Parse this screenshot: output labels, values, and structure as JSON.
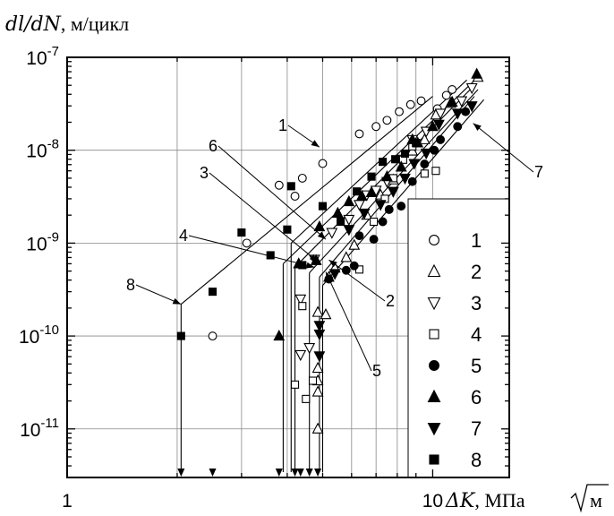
{
  "chart_data": {
    "type": "scatter",
    "x_scale": "log",
    "y_scale": "log",
    "xlim": [
      1,
      16.2
    ],
    "ylim": [
      3e-12,
      1e-07
    ],
    "grid": true,
    "legend_placement": "right",
    "ylabel": {
      "var": "dl/dN",
      "unit": ", м/цикл"
    },
    "xlabel": {
      "var": "ΔK",
      "unit": ", МПа ",
      "root": "м"
    },
    "x_ticks": [
      {
        "value": 1,
        "label": "1"
      },
      {
        "value": 10,
        "label": "10"
      }
    ],
    "y_ticks": [
      {
        "value": 1e-07,
        "mantissa": "10",
        "exponent": "-7"
      },
      {
        "value": 1e-08,
        "mantissa": "10",
        "exponent": "-8"
      },
      {
        "value": 1e-09,
        "mantissa": "10",
        "exponent": "-9"
      },
      {
        "value": 1e-10,
        "mantissa": "10",
        "exponent": "-10"
      },
      {
        "value": 1e-11,
        "mantissa": "10",
        "exponent": "-11"
      }
    ],
    "series": [
      {
        "name": "1",
        "marker": "circle-open",
        "points": [
          [
            2.5,
            1e-10
          ],
          [
            3.1,
            1e-09
          ],
          [
            3.8,
            4.2e-09
          ],
          [
            4.2,
            3.2e-09
          ],
          [
            4.4,
            5e-09
          ],
          [
            5.0,
            7.2e-09
          ],
          [
            6.3,
            1.5e-08
          ],
          [
            7.0,
            1.8e-08
          ],
          [
            7.5,
            2.1e-08
          ],
          [
            8.1,
            2.6e-08
          ],
          [
            8.7,
            3.1e-08
          ],
          [
            9.3,
            3.4e-08
          ],
          [
            10.3,
            2.8e-08
          ],
          [
            10.9,
            3.9e-08
          ],
          [
            11.3,
            4.5e-08
          ]
        ],
        "line": [
          [
            4.1,
            1e-09
          ],
          [
            12.4,
            5.7e-08
          ]
        ]
      },
      {
        "name": "2",
        "marker": "triangle-up-open",
        "points": [
          [
            4.85,
            1e-11
          ],
          [
            4.85,
            2.5e-11
          ],
          [
            4.85,
            3.3e-11
          ],
          [
            4.85,
            4.5e-11
          ],
          [
            4.85,
            1.8e-10
          ],
          [
            5.1,
            1.7e-10
          ],
          [
            5.2,
            4.3e-10
          ],
          [
            5.4,
            5.4e-10
          ],
          [
            5.8,
            7e-10
          ],
          [
            6.1,
            9.5e-10
          ],
          [
            6.6,
            2e-09
          ],
          [
            7.2,
            3.3e-09
          ],
          [
            7.8,
            4.8e-09
          ],
          [
            8.8,
            9.8e-09
          ],
          [
            9.5,
            1.3e-08
          ],
          [
            10.2,
            2.4e-08
          ],
          [
            11.2,
            3.2e-08
          ],
          [
            13.3,
            6.1e-08
          ]
        ],
        "line": [
          [
            4.9,
            4.3e-10
          ],
          [
            13.0,
            3.8e-08
          ]
        ]
      },
      {
        "name": "3",
        "marker": "triangle-down-open",
        "points": [
          [
            4.35,
            6.3e-11
          ],
          [
            4.35,
            2.5e-10
          ],
          [
            4.6,
            7.5e-11
          ],
          [
            4.75,
            6.7e-10
          ],
          [
            5.3,
            1.3e-09
          ],
          [
            5.9,
            1.8e-09
          ],
          [
            6.3,
            2.6e-09
          ],
          [
            6.6,
            3.3e-09
          ],
          [
            7.0,
            3.7e-09
          ],
          [
            7.5,
            4.6e-09
          ],
          [
            8.2,
            8e-09
          ],
          [
            8.8,
            1.3e-08
          ],
          [
            9.6,
            1.6e-08
          ],
          [
            10.5,
            2.5e-08
          ],
          [
            12.0,
            3.4e-08
          ],
          [
            12.8,
            4.7e-08
          ]
        ],
        "line": [
          [
            4.6,
            4.8e-10
          ],
          [
            13.3,
            4.5e-08
          ]
        ]
      },
      {
        "name": "4",
        "marker": "square-open",
        "points": [
          [
            4.2,
            3e-11
          ],
          [
            4.4,
            2.1e-10
          ],
          [
            4.5,
            2.1e-11
          ],
          [
            4.7,
            3.3e-11
          ],
          [
            6.3,
            5.2e-10
          ],
          [
            6.9,
            1.7e-09
          ],
          [
            7.4,
            3e-09
          ],
          [
            7.8,
            5e-09
          ],
          [
            8.3,
            7.9e-09
          ],
          [
            8.8,
            1.1e-08
          ],
          [
            9.5,
            5.6e-09
          ],
          [
            10.2,
            6e-09
          ]
        ],
        "line": [
          [
            4.2,
            5.5e-10
          ],
          [
            13.0,
            5e-08
          ]
        ]
      },
      {
        "name": "5",
        "marker": "circle-filled",
        "points": [
          [
            5.2,
            4.1e-10
          ],
          [
            5.8,
            5.1e-10
          ],
          [
            6.1,
            5.7e-10
          ],
          [
            6.3,
            1.2e-09
          ],
          [
            6.9,
            1.1e-09
          ],
          [
            7.3,
            1.7e-09
          ],
          [
            7.6,
            2.3e-09
          ],
          [
            8.2,
            2.5e-09
          ],
          [
            8.8,
            4.6e-09
          ],
          [
            9.5,
            7.1e-09
          ],
          [
            10.1,
            1e-08
          ],
          [
            10.5,
            1.3e-08
          ],
          [
            11.7,
            1.8e-08
          ],
          [
            12.3,
            2.6e-08
          ]
        ]
      },
      {
        "name": "6",
        "marker": "triangle-up-filled",
        "points": [
          [
            3.8,
            1e-10
          ],
          [
            4.3,
            6e-10
          ],
          [
            4.8,
            6.5e-10
          ],
          [
            4.9,
            1.5e-09
          ],
          [
            5.5,
            2.1e-09
          ],
          [
            5.9,
            2.8e-09
          ],
          [
            6.4,
            3.2e-09
          ],
          [
            6.8,
            3.5e-09
          ],
          [
            7.5,
            5.2e-09
          ],
          [
            8.2,
            6.6e-09
          ],
          [
            8.8,
            1.3e-08
          ],
          [
            9.1,
            1.2e-08
          ],
          [
            10.0,
            1.8e-08
          ],
          [
            11.3,
            3.3e-08
          ],
          [
            13.2,
            6.6e-08
          ]
        ],
        "line": [
          [
            3.9,
            6e-10
          ],
          [
            13.4,
            6.3e-08
          ]
        ]
      },
      {
        "name": "7",
        "marker": "triangle-down-filled",
        "points": [
          [
            4.9,
            6.1e-11
          ],
          [
            4.9,
            1.05e-10
          ],
          [
            4.9,
            1.3e-10
          ],
          [
            5.4,
            4.7e-10
          ],
          [
            5.9,
            1.4e-09
          ],
          [
            6.5,
            2.1e-09
          ],
          [
            7.2,
            2.6e-09
          ],
          [
            7.8,
            3.6e-09
          ],
          [
            8.4,
            5e-09
          ],
          [
            8.9,
            7.2e-09
          ],
          [
            9.6,
            9.3e-09
          ],
          [
            10.4,
            1.9e-08
          ],
          [
            11.7,
            2.5e-08
          ],
          [
            12.8,
            3e-08
          ]
        ],
        "line": [
          [
            5.0,
            3.5e-10
          ],
          [
            13.8,
            3.5e-08
          ]
        ]
      },
      {
        "name": "8",
        "marker": "square-filled",
        "points": [
          [
            2.05,
            1e-10
          ],
          [
            2.5,
            3e-10
          ],
          [
            3.0,
            1.3e-09
          ],
          [
            3.6,
            7.4e-10
          ],
          [
            4.0,
            1.4e-09
          ],
          [
            4.1,
            4.1e-09
          ],
          [
            4.4,
            5.8e-10
          ],
          [
            5.0,
            2.5e-09
          ],
          [
            5.6,
            1.7e-09
          ],
          [
            6.2,
            3.6e-09
          ],
          [
            6.8,
            5.2e-09
          ],
          [
            7.3,
            7.5e-09
          ],
          [
            7.9,
            8e-09
          ],
          [
            8.4,
            9.2e-09
          ],
          [
            9.0,
            1.2e-08
          ]
        ],
        "line": [
          [
            2.05,
            2.2e-10
          ],
          [
            10.0,
            3.8e-08
          ]
        ]
      }
    ],
    "threshold_arrows": [
      2.05,
      2.5,
      3.8,
      4.2,
      4.35,
      4.6,
      4.85
    ],
    "annotations": [
      {
        "text": "1",
        "line_to": [
          4.9,
          1.08e-08
        ]
      },
      {
        "text": "6",
        "line_to": [
          5.1,
          1.1e-09
        ]
      },
      {
        "text": "3",
        "line_to": [
          4.85,
          6.3e-10
        ]
      },
      {
        "text": "4",
        "line_to": [
          4.75,
          5.5e-10
        ]
      },
      {
        "text": "8",
        "line_to": [
          2.05,
          2.2e-10
        ]
      },
      {
        "text": "2",
        "line_to": [
          5.2,
          6.6e-10
        ]
      },
      {
        "text": "5",
        "line_to": [
          5.1,
          4.9e-10
        ]
      },
      {
        "text": "7",
        "line_to": [
          12.9,
          1.95e-08
        ]
      }
    ]
  }
}
